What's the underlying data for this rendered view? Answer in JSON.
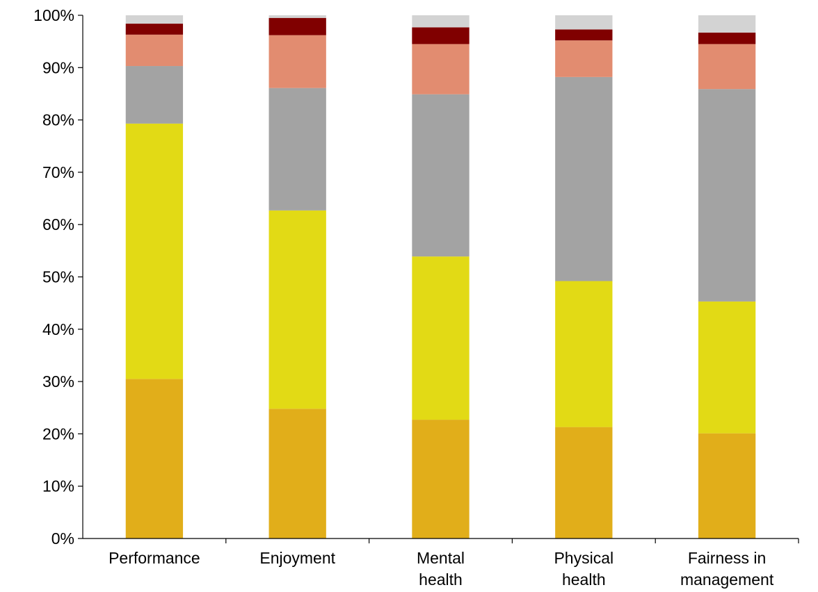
{
  "chart_data": {
    "type": "bar",
    "stacked": true,
    "title": "",
    "xlabel": "",
    "ylabel": "",
    "ylim": [
      0,
      100
    ],
    "yticks": [
      "0%",
      "10%",
      "20%",
      "30%",
      "40%",
      "50%",
      "60%",
      "70%",
      "80%",
      "90%",
      "100%"
    ],
    "grid": false,
    "legend": "none",
    "categories": [
      [
        "Performance"
      ],
      [
        "Enjoyment"
      ],
      [
        "Mental",
        "health"
      ],
      [
        "Physical",
        "health"
      ],
      [
        "Fairness in",
        "management"
      ]
    ],
    "series": [
      {
        "color": "#E1AE1A",
        "values": [
          30.5,
          24.8,
          22.7,
          21.3,
          20.1
        ]
      },
      {
        "color": "#E2DA15",
        "values": [
          48.8,
          37.9,
          31.2,
          27.9,
          25.2
        ]
      },
      {
        "color": "#A3A3A3",
        "values": [
          11.0,
          23.4,
          31.0,
          39.0,
          40.6
        ]
      },
      {
        "color": "#E28C70",
        "values": [
          6.0,
          10.1,
          9.6,
          7.0,
          8.6
        ]
      },
      {
        "color": "#800000",
        "values": [
          2.1,
          3.3,
          3.2,
          2.1,
          2.2
        ]
      },
      {
        "color": "#D3D3D3",
        "values": [
          1.6,
          0.5,
          2.3,
          2.7,
          3.3
        ]
      }
    ]
  }
}
